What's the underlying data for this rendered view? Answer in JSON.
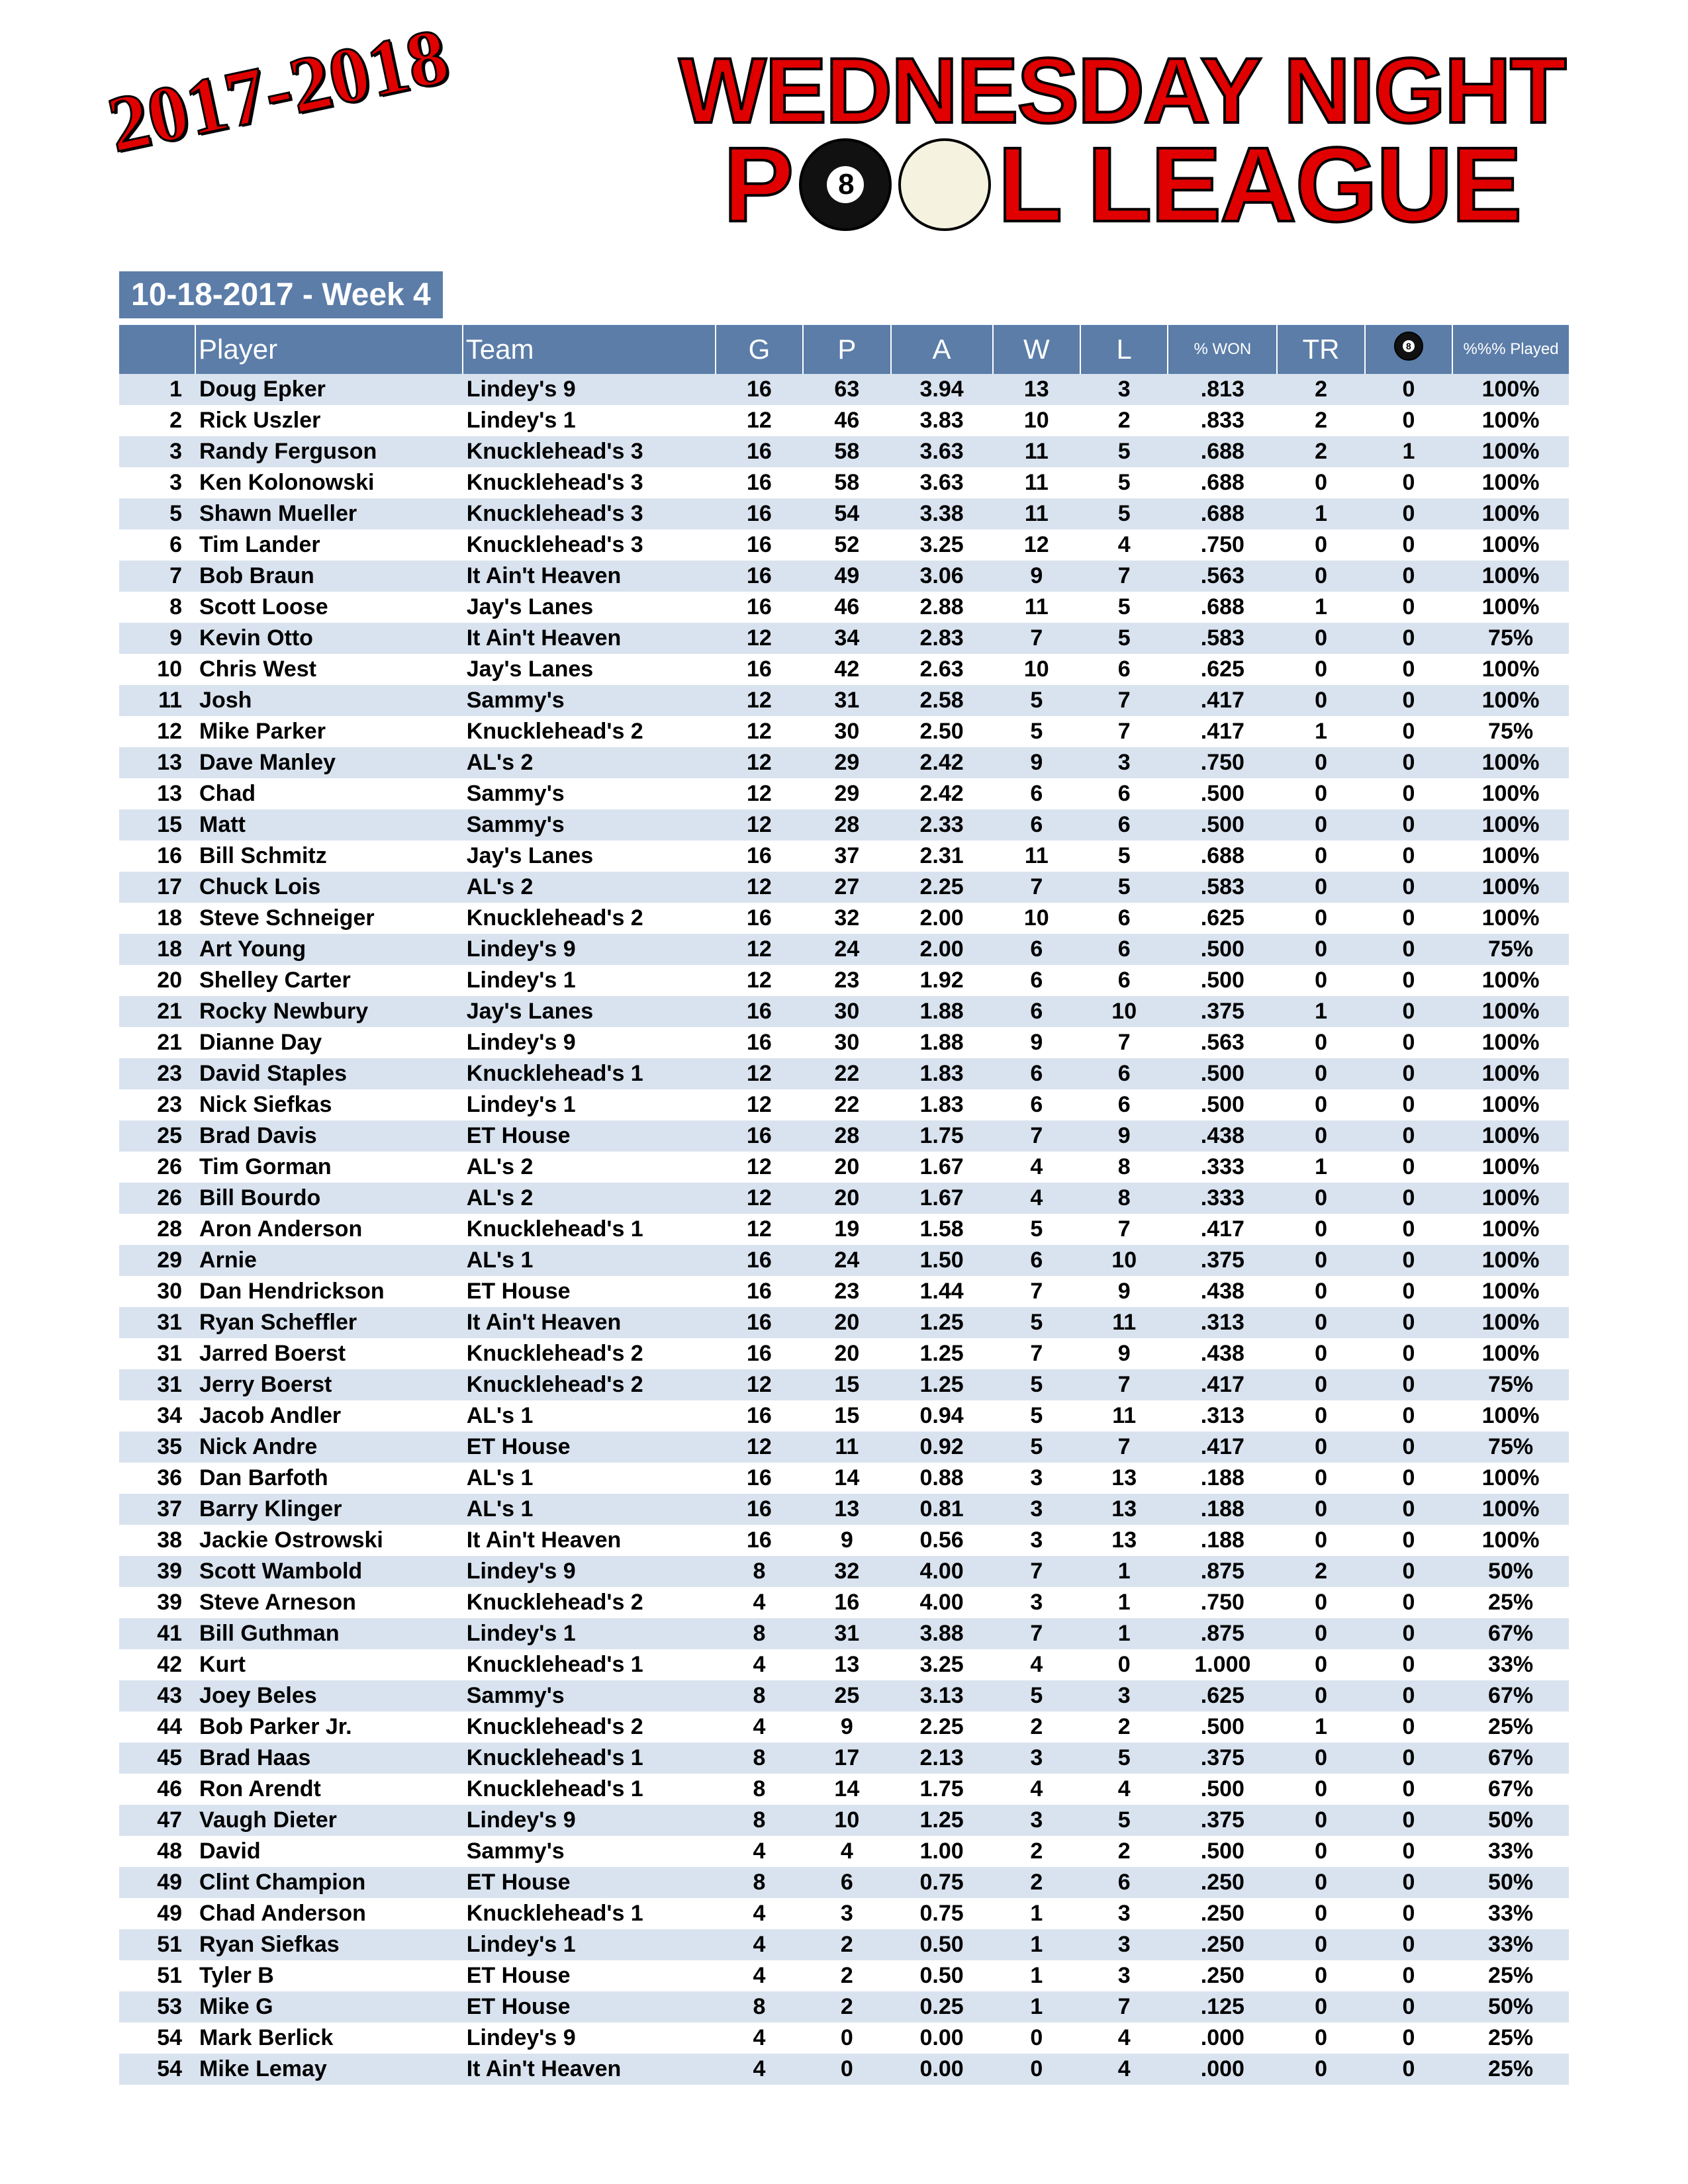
{
  "season_tag": "2017-2018",
  "logo_line1": "WEDNESDAY NIGHT",
  "logo_line2_a": "P",
  "logo_line2_b": "L   LEAGUE",
  "subheader": "10-18-2017 - Week 4",
  "columns": {
    "rank": "",
    "player": "Player",
    "team": "Team",
    "g": "G",
    "p": "P",
    "a": "A",
    "w": "W",
    "l": "L",
    "pctwon": "%\nWON",
    "tr": "TR",
    "eightball": "8",
    "played": "%%%\nPlayed"
  },
  "colors": {
    "header_bg": "#5b7da8",
    "row_odd": "#d9e3ef",
    "row_even": "#ffffff",
    "accent_red": "#e00000"
  },
  "rows": [
    {
      "rank": "1",
      "player": "Doug Epker",
      "team": "Lindey's 9",
      "g": "16",
      "p": "63",
      "a": "3.94",
      "w": "13",
      "l": "3",
      "pct": ".813",
      "tr": "2",
      "eb": "0",
      "played": "100%"
    },
    {
      "rank": "2",
      "player": "Rick Uszler",
      "team": "Lindey's 1",
      "g": "12",
      "p": "46",
      "a": "3.83",
      "w": "10",
      "l": "2",
      "pct": ".833",
      "tr": "2",
      "eb": "0",
      "played": "100%"
    },
    {
      "rank": "3",
      "player": "Randy Ferguson",
      "team": "Knucklehead's 3",
      "g": "16",
      "p": "58",
      "a": "3.63",
      "w": "11",
      "l": "5",
      "pct": ".688",
      "tr": "2",
      "eb": "1",
      "played": "100%"
    },
    {
      "rank": "3",
      "player": "Ken Kolonowski",
      "team": "Knucklehead's 3",
      "g": "16",
      "p": "58",
      "a": "3.63",
      "w": "11",
      "l": "5",
      "pct": ".688",
      "tr": "0",
      "eb": "0",
      "played": "100%"
    },
    {
      "rank": "5",
      "player": "Shawn Mueller",
      "team": "Knucklehead's 3",
      "g": "16",
      "p": "54",
      "a": "3.38",
      "w": "11",
      "l": "5",
      "pct": ".688",
      "tr": "1",
      "eb": "0",
      "played": "100%"
    },
    {
      "rank": "6",
      "player": "Tim Lander",
      "team": "Knucklehead's 3",
      "g": "16",
      "p": "52",
      "a": "3.25",
      "w": "12",
      "l": "4",
      "pct": ".750",
      "tr": "0",
      "eb": "0",
      "played": "100%"
    },
    {
      "rank": "7",
      "player": "Bob Braun",
      "team": "It Ain't Heaven",
      "g": "16",
      "p": "49",
      "a": "3.06",
      "w": "9",
      "l": "7",
      "pct": ".563",
      "tr": "0",
      "eb": "0",
      "played": "100%"
    },
    {
      "rank": "8",
      "player": "Scott Loose",
      "team": "Jay's Lanes",
      "g": "16",
      "p": "46",
      "a": "2.88",
      "w": "11",
      "l": "5",
      "pct": ".688",
      "tr": "1",
      "eb": "0",
      "played": "100%"
    },
    {
      "rank": "9",
      "player": "Kevin Otto",
      "team": "It Ain't Heaven",
      "g": "12",
      "p": "34",
      "a": "2.83",
      "w": "7",
      "l": "5",
      "pct": ".583",
      "tr": "0",
      "eb": "0",
      "played": "75%"
    },
    {
      "rank": "10",
      "player": "Chris West",
      "team": "Jay's Lanes",
      "g": "16",
      "p": "42",
      "a": "2.63",
      "w": "10",
      "l": "6",
      "pct": ".625",
      "tr": "0",
      "eb": "0",
      "played": "100%"
    },
    {
      "rank": "11",
      "player": "Josh",
      "team": "Sammy's",
      "g": "12",
      "p": "31",
      "a": "2.58",
      "w": "5",
      "l": "7",
      "pct": ".417",
      "tr": "0",
      "eb": "0",
      "played": "100%"
    },
    {
      "rank": "12",
      "player": "Mike Parker",
      "team": "Knucklehead's 2",
      "g": "12",
      "p": "30",
      "a": "2.50",
      "w": "5",
      "l": "7",
      "pct": ".417",
      "tr": "1",
      "eb": "0",
      "played": "75%"
    },
    {
      "rank": "13",
      "player": "Dave Manley",
      "team": "AL's 2",
      "g": "12",
      "p": "29",
      "a": "2.42",
      "w": "9",
      "l": "3",
      "pct": ".750",
      "tr": "0",
      "eb": "0",
      "played": "100%"
    },
    {
      "rank": "13",
      "player": "Chad",
      "team": "Sammy's",
      "g": "12",
      "p": "29",
      "a": "2.42",
      "w": "6",
      "l": "6",
      "pct": ".500",
      "tr": "0",
      "eb": "0",
      "played": "100%"
    },
    {
      "rank": "15",
      "player": "Matt",
      "team": "Sammy's",
      "g": "12",
      "p": "28",
      "a": "2.33",
      "w": "6",
      "l": "6",
      "pct": ".500",
      "tr": "0",
      "eb": "0",
      "played": "100%"
    },
    {
      "rank": "16",
      "player": "Bill Schmitz",
      "team": "Jay's Lanes",
      "g": "16",
      "p": "37",
      "a": "2.31",
      "w": "11",
      "l": "5",
      "pct": ".688",
      "tr": "0",
      "eb": "0",
      "played": "100%"
    },
    {
      "rank": "17",
      "player": "Chuck Lois",
      "team": "AL's 2",
      "g": "12",
      "p": "27",
      "a": "2.25",
      "w": "7",
      "l": "5",
      "pct": ".583",
      "tr": "0",
      "eb": "0",
      "played": "100%"
    },
    {
      "rank": "18",
      "player": "Steve Schneiger",
      "team": "Knucklehead's 2",
      "g": "16",
      "p": "32",
      "a": "2.00",
      "w": "10",
      "l": "6",
      "pct": ".625",
      "tr": "0",
      "eb": "0",
      "played": "100%"
    },
    {
      "rank": "18",
      "player": "Art Young",
      "team": "Lindey's 9",
      "g": "12",
      "p": "24",
      "a": "2.00",
      "w": "6",
      "l": "6",
      "pct": ".500",
      "tr": "0",
      "eb": "0",
      "played": "75%"
    },
    {
      "rank": "20",
      "player": "Shelley Carter",
      "team": "Lindey's 1",
      "g": "12",
      "p": "23",
      "a": "1.92",
      "w": "6",
      "l": "6",
      "pct": ".500",
      "tr": "0",
      "eb": "0",
      "played": "100%"
    },
    {
      "rank": "21",
      "player": "Rocky Newbury",
      "team": "Jay's Lanes",
      "g": "16",
      "p": "30",
      "a": "1.88",
      "w": "6",
      "l": "10",
      "pct": ".375",
      "tr": "1",
      "eb": "0",
      "played": "100%"
    },
    {
      "rank": "21",
      "player": "Dianne Day",
      "team": "Lindey's 9",
      "g": "16",
      "p": "30",
      "a": "1.88",
      "w": "9",
      "l": "7",
      "pct": ".563",
      "tr": "0",
      "eb": "0",
      "played": "100%"
    },
    {
      "rank": "23",
      "player": "David Staples",
      "team": "Knucklehead's 1",
      "g": "12",
      "p": "22",
      "a": "1.83",
      "w": "6",
      "l": "6",
      "pct": ".500",
      "tr": "0",
      "eb": "0",
      "played": "100%"
    },
    {
      "rank": "23",
      "player": "Nick Siefkas",
      "team": "Lindey's 1",
      "g": "12",
      "p": "22",
      "a": "1.83",
      "w": "6",
      "l": "6",
      "pct": ".500",
      "tr": "0",
      "eb": "0",
      "played": "100%"
    },
    {
      "rank": "25",
      "player": "Brad Davis",
      "team": "ET House",
      "g": "16",
      "p": "28",
      "a": "1.75",
      "w": "7",
      "l": "9",
      "pct": ".438",
      "tr": "0",
      "eb": "0",
      "played": "100%"
    },
    {
      "rank": "26",
      "player": "Tim Gorman",
      "team": "AL's 2",
      "g": "12",
      "p": "20",
      "a": "1.67",
      "w": "4",
      "l": "8",
      "pct": ".333",
      "tr": "1",
      "eb": "0",
      "played": "100%"
    },
    {
      "rank": "26",
      "player": "Bill Bourdo",
      "team": "AL's 2",
      "g": "12",
      "p": "20",
      "a": "1.67",
      "w": "4",
      "l": "8",
      "pct": ".333",
      "tr": "0",
      "eb": "0",
      "played": "100%"
    },
    {
      "rank": "28",
      "player": "Aron Anderson",
      "team": "Knucklehead's 1",
      "g": "12",
      "p": "19",
      "a": "1.58",
      "w": "5",
      "l": "7",
      "pct": ".417",
      "tr": "0",
      "eb": "0",
      "played": "100%"
    },
    {
      "rank": "29",
      "player": "Arnie",
      "team": "AL's 1",
      "g": "16",
      "p": "24",
      "a": "1.50",
      "w": "6",
      "l": "10",
      "pct": ".375",
      "tr": "0",
      "eb": "0",
      "played": "100%"
    },
    {
      "rank": "30",
      "player": "Dan Hendrickson",
      "team": "ET House",
      "g": "16",
      "p": "23",
      "a": "1.44",
      "w": "7",
      "l": "9",
      "pct": ".438",
      "tr": "0",
      "eb": "0",
      "played": "100%"
    },
    {
      "rank": "31",
      "player": "Ryan Scheffler",
      "team": "It Ain't Heaven",
      "g": "16",
      "p": "20",
      "a": "1.25",
      "w": "5",
      "l": "11",
      "pct": ".313",
      "tr": "0",
      "eb": "0",
      "played": "100%"
    },
    {
      "rank": "31",
      "player": "Jarred Boerst",
      "team": "Knucklehead's 2",
      "g": "16",
      "p": "20",
      "a": "1.25",
      "w": "7",
      "l": "9",
      "pct": ".438",
      "tr": "0",
      "eb": "0",
      "played": "100%"
    },
    {
      "rank": "31",
      "player": "Jerry Boerst",
      "team": "Knucklehead's 2",
      "g": "12",
      "p": "15",
      "a": "1.25",
      "w": "5",
      "l": "7",
      "pct": ".417",
      "tr": "0",
      "eb": "0",
      "played": "75%"
    },
    {
      "rank": "34",
      "player": "Jacob Andler",
      "team": "AL's 1",
      "g": "16",
      "p": "15",
      "a": "0.94",
      "w": "5",
      "l": "11",
      "pct": ".313",
      "tr": "0",
      "eb": "0",
      "played": "100%"
    },
    {
      "rank": "35",
      "player": "Nick Andre",
      "team": "ET House",
      "g": "12",
      "p": "11",
      "a": "0.92",
      "w": "5",
      "l": "7",
      "pct": ".417",
      "tr": "0",
      "eb": "0",
      "played": "75%"
    },
    {
      "rank": "36",
      "player": "Dan Barfoth",
      "team": "AL's 1",
      "g": "16",
      "p": "14",
      "a": "0.88",
      "w": "3",
      "l": "13",
      "pct": ".188",
      "tr": "0",
      "eb": "0",
      "played": "100%"
    },
    {
      "rank": "37",
      "player": "Barry Klinger",
      "team": "AL's 1",
      "g": "16",
      "p": "13",
      "a": "0.81",
      "w": "3",
      "l": "13",
      "pct": ".188",
      "tr": "0",
      "eb": "0",
      "played": "100%"
    },
    {
      "rank": "38",
      "player": "Jackie Ostrowski",
      "team": "It Ain't Heaven",
      "g": "16",
      "p": "9",
      "a": "0.56",
      "w": "3",
      "l": "13",
      "pct": ".188",
      "tr": "0",
      "eb": "0",
      "played": "100%"
    },
    {
      "rank": "39",
      "player": "Scott Wambold",
      "team": "Lindey's 9",
      "g": "8",
      "p": "32",
      "a": "4.00",
      "w": "7",
      "l": "1",
      "pct": ".875",
      "tr": "2",
      "eb": "0",
      "played": "50%"
    },
    {
      "rank": "39",
      "player": "Steve Arneson",
      "team": "Knucklehead's 2",
      "g": "4",
      "p": "16",
      "a": "4.00",
      "w": "3",
      "l": "1",
      "pct": ".750",
      "tr": "0",
      "eb": "0",
      "played": "25%"
    },
    {
      "rank": "41",
      "player": "Bill Guthman",
      "team": "Lindey's 1",
      "g": "8",
      "p": "31",
      "a": "3.88",
      "w": "7",
      "l": "1",
      "pct": ".875",
      "tr": "0",
      "eb": "0",
      "played": "67%"
    },
    {
      "rank": "42",
      "player": "Kurt",
      "team": "Knucklehead's 1",
      "g": "4",
      "p": "13",
      "a": "3.25",
      "w": "4",
      "l": "0",
      "pct": "1.000",
      "tr": "0",
      "eb": "0",
      "played": "33%"
    },
    {
      "rank": "43",
      "player": "Joey Beles",
      "team": "Sammy's",
      "g": "8",
      "p": "25",
      "a": "3.13",
      "w": "5",
      "l": "3",
      "pct": ".625",
      "tr": "0",
      "eb": "0",
      "played": "67%"
    },
    {
      "rank": "44",
      "player": "Bob Parker Jr.",
      "team": "Knucklehead's 2",
      "g": "4",
      "p": "9",
      "a": "2.25",
      "w": "2",
      "l": "2",
      "pct": ".500",
      "tr": "1",
      "eb": "0",
      "played": "25%"
    },
    {
      "rank": "45",
      "player": "Brad Haas",
      "team": "Knucklehead's 1",
      "g": "8",
      "p": "17",
      "a": "2.13",
      "w": "3",
      "l": "5",
      "pct": ".375",
      "tr": "0",
      "eb": "0",
      "played": "67%"
    },
    {
      "rank": "46",
      "player": "Ron Arendt",
      "team": "Knucklehead's 1",
      "g": "8",
      "p": "14",
      "a": "1.75",
      "w": "4",
      "l": "4",
      "pct": ".500",
      "tr": "0",
      "eb": "0",
      "played": "67%"
    },
    {
      "rank": "47",
      "player": "Vaugh Dieter",
      "team": "Lindey's 9",
      "g": "8",
      "p": "10",
      "a": "1.25",
      "w": "3",
      "l": "5",
      "pct": ".375",
      "tr": "0",
      "eb": "0",
      "played": "50%"
    },
    {
      "rank": "48",
      "player": "David",
      "team": "Sammy's",
      "g": "4",
      "p": "4",
      "a": "1.00",
      "w": "2",
      "l": "2",
      "pct": ".500",
      "tr": "0",
      "eb": "0",
      "played": "33%"
    },
    {
      "rank": "49",
      "player": "Clint Champion",
      "team": "ET House",
      "g": "8",
      "p": "6",
      "a": "0.75",
      "w": "2",
      "l": "6",
      "pct": ".250",
      "tr": "0",
      "eb": "0",
      "played": "50%"
    },
    {
      "rank": "49",
      "player": "Chad Anderson",
      "team": "Knucklehead's 1",
      "g": "4",
      "p": "3",
      "a": "0.75",
      "w": "1",
      "l": "3",
      "pct": ".250",
      "tr": "0",
      "eb": "0",
      "played": "33%"
    },
    {
      "rank": "51",
      "player": "Ryan Siefkas",
      "team": "Lindey's 1",
      "g": "4",
      "p": "2",
      "a": "0.50",
      "w": "1",
      "l": "3",
      "pct": ".250",
      "tr": "0",
      "eb": "0",
      "played": "33%"
    },
    {
      "rank": "51",
      "player": "Tyler B",
      "team": "ET House",
      "g": "4",
      "p": "2",
      "a": "0.50",
      "w": "1",
      "l": "3",
      "pct": ".250",
      "tr": "0",
      "eb": "0",
      "played": "25%"
    },
    {
      "rank": "53",
      "player": "Mike G",
      "team": "ET House",
      "g": "8",
      "p": "2",
      "a": "0.25",
      "w": "1",
      "l": "7",
      "pct": ".125",
      "tr": "0",
      "eb": "0",
      "played": "50%"
    },
    {
      "rank": "54",
      "player": "Mark Berlick",
      "team": "Lindey's 9",
      "g": "4",
      "p": "0",
      "a": "0.00",
      "w": "0",
      "l": "4",
      "pct": ".000",
      "tr": "0",
      "eb": "0",
      "played": "25%"
    },
    {
      "rank": "54",
      "player": "Mike Lemay",
      "team": "It Ain't Heaven",
      "g": "4",
      "p": "0",
      "a": "0.00",
      "w": "0",
      "l": "4",
      "pct": ".000",
      "tr": "0",
      "eb": "0",
      "played": "25%"
    }
  ]
}
